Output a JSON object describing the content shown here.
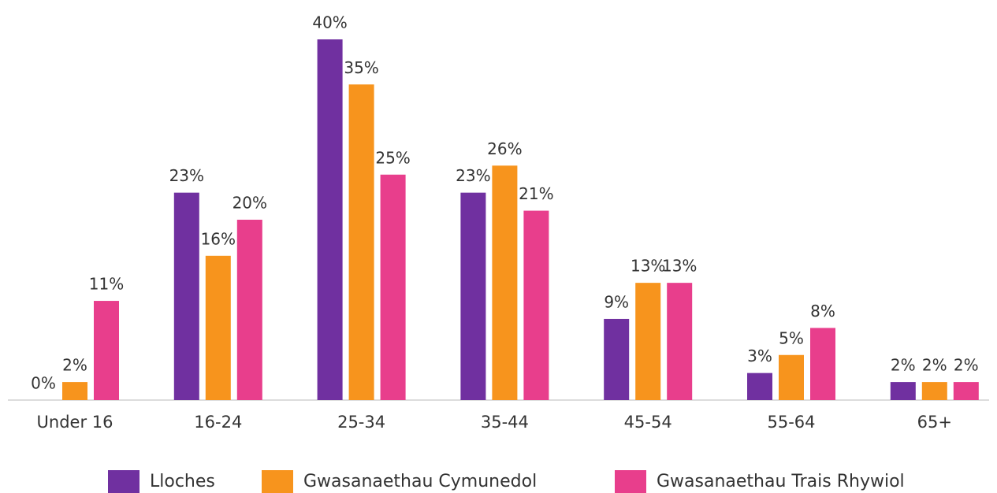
{
  "chart_data": {
    "type": "bar",
    "categories": [
      "Under 16",
      "16-24",
      "25-34",
      "35-44",
      "45-54",
      "55-64",
      "65+"
    ],
    "series": [
      {
        "name": "Lloches",
        "color": "#7030a0",
        "values": [
          0,
          23,
          40,
          23,
          9,
          3,
          2
        ],
        "value_labels": [
          "0%",
          "23%",
          "40%",
          "23%",
          "9%",
          "3%",
          "2%"
        ]
      },
      {
        "name": "Gwasanaethau Cymunedol",
        "color": "#f7941d",
        "values": [
          2,
          16,
          35,
          26,
          13,
          5,
          2
        ],
        "value_labels": [
          "2%",
          "16%",
          "35%",
          "26%",
          "13%",
          "5%",
          "2%"
        ]
      },
      {
        "name": "Gwasanaethau Trais Rhywiol",
        "color": "#e83e8c",
        "values": [
          11,
          20,
          25,
          21,
          13,
          8,
          2
        ],
        "value_labels": [
          "11%",
          "20%",
          "25%",
          "21%",
          "13%",
          "8%",
          "2%"
        ]
      }
    ],
    "ylim": [
      0,
      40
    ],
    "legend": "bottom"
  }
}
